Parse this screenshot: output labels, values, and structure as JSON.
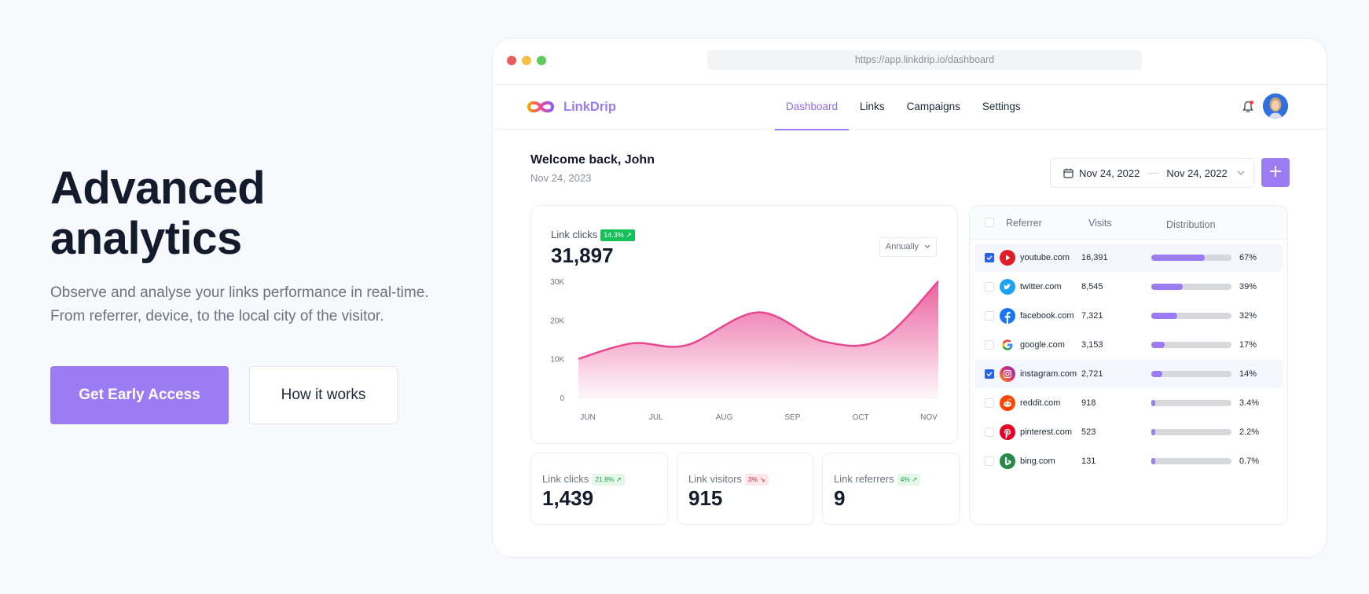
{
  "hero": {
    "title_line1": "Advanced",
    "title_line2": "analytics",
    "desc_line1": "Observe and analyse your links performance in real-time.",
    "desc_line2": "From referrer, device, to the local city of the visitor.",
    "cta_primary": "Get Early Access",
    "cta_secondary": "How it works"
  },
  "browser": {
    "url": "https://app.linkdrip.io/dashboard"
  },
  "app": {
    "brand": "LinkDrip",
    "nav": [
      "Dashboard",
      "Links",
      "Campaigns",
      "Settings"
    ],
    "active_nav": "Dashboard",
    "welcome": "Welcome back, John",
    "today": "Nov 24, 2023",
    "date_from": "Nov 24, 2022",
    "date_to": "Nov 24, 2022"
  },
  "chart_card": {
    "title": "Link clicks",
    "badge": "14.3%",
    "value": "31,897",
    "period": "Annually"
  },
  "chart_data": {
    "type": "area",
    "categories": [
      "JUN",
      "JUL",
      "AUG",
      "SEP",
      "OCT",
      "NOV"
    ],
    "y_ticks": [
      "0",
      "10K",
      "20K",
      "30K"
    ],
    "ylim": [
      0,
      30000
    ],
    "points": [
      {
        "x": 0.0,
        "y": 10000
      },
      {
        "x": 0.15,
        "y": 14000
      },
      {
        "x": 0.3,
        "y": 13500
      },
      {
        "x": 0.5,
        "y": 22000
      },
      {
        "x": 0.68,
        "y": 14500
      },
      {
        "x": 0.84,
        "y": 15000
      },
      {
        "x": 1.0,
        "y": 30000
      }
    ],
    "color": "#e8468f"
  },
  "stats": [
    {
      "label": "Link clicks",
      "badge": "21.8%",
      "trend": "up",
      "value": "1,439"
    },
    {
      "label": "Link visitors",
      "badge": "3%",
      "trend": "down",
      "value": "915"
    },
    {
      "label": "Link referrers",
      "badge": "4%",
      "trend": "up",
      "value": "9"
    }
  ],
  "referrers": {
    "headers": [
      "Referrer",
      "Visits",
      "Distribution"
    ],
    "rows": [
      {
        "name": "youtube.com",
        "visits": "16,391",
        "pct": "67%",
        "share": 0.67,
        "checked": true,
        "icon": "youtube-icon"
      },
      {
        "name": "twitter.com",
        "visits": "8,545",
        "pct": "39%",
        "share": 0.39,
        "checked": false,
        "icon": "twitter-icon"
      },
      {
        "name": "facebook.com",
        "visits": "7,321",
        "pct": "32%",
        "share": 0.32,
        "checked": false,
        "icon": "facebook-icon"
      },
      {
        "name": "google.com",
        "visits": "3,153",
        "pct": "17%",
        "share": 0.17,
        "checked": false,
        "icon": "google-icon"
      },
      {
        "name": "instagram.com",
        "visits": "2,721",
        "pct": "14%",
        "share": 0.14,
        "checked": true,
        "icon": "instagram-icon"
      },
      {
        "name": "reddit.com",
        "visits": "918",
        "pct": "3.4%",
        "share": 0.034,
        "checked": false,
        "icon": "reddit-icon"
      },
      {
        "name": "pinterest.com",
        "visits": "523",
        "pct": "2.2%",
        "share": 0.022,
        "checked": false,
        "icon": "pinterest-icon"
      },
      {
        "name": "bing.com",
        "visits": "131",
        "pct": "0.7%",
        "share": 0.007,
        "checked": false,
        "icon": "bing-icon"
      }
    ]
  },
  "colors": {
    "accent": "#9b7cf3",
    "chart": "#e8468f",
    "positive": "#16c05a",
    "negative": "#e11d48"
  }
}
